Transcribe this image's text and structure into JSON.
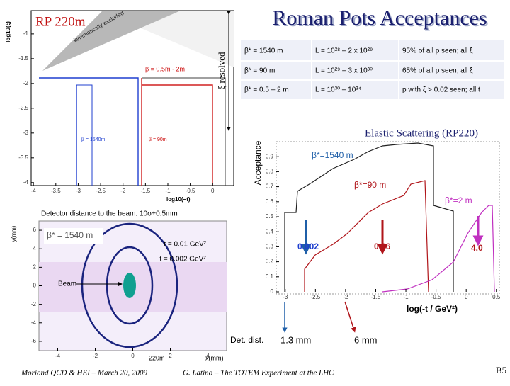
{
  "title": "Roman Pots Acceptances",
  "rp_label": "RP 220m",
  "xi_resolved": "ξ resolved",
  "table": {
    "rows": [
      [
        "β* = 1540 m",
        "L = 10²⁸ – 2 x 10²⁹",
        "95% of all p seen; all ξ"
      ],
      [
        "β* = 90 m",
        "L = 10²⁹ – 3 x 10³⁰",
        "65% of all p seen; all ξ"
      ],
      [
        "β* = 0.5 – 2 m",
        "L = 10³⁰ – 10³⁴",
        "p with ξ > 0.02 seen; all t"
      ]
    ]
  },
  "top_plot": {
    "y_label": "log10(ξ)",
    "x_label": "log10(−t)",
    "excluded": "kinematically excluded",
    "beta_low": "β = 0.5m - 2m",
    "beta_1540": "β = 1540m",
    "beta_90": "β = 90m",
    "xlim": [
      -4.05,
      0.47
    ],
    "ylim": [
      -4.06,
      -0.53
    ],
    "xticks": [
      -4,
      -3.5,
      -3,
      -2.5,
      -2,
      -1.5,
      -1,
      -0.5,
      0
    ],
    "yticks": [
      -1,
      -1.5,
      -2,
      -2.5,
      -3,
      -3.5,
      -4
    ]
  },
  "detector_caption": "Detector distance to the beam: 10σ+0.5mm",
  "beam_plot": {
    "y_label": "y(mm)",
    "x_label": "x(mm)",
    "position": "220m",
    "beta": "β* = 1540 m",
    "t1": "-t = 0.01 GeV²",
    "t2": "-t = 0.002 GeV²",
    "beam": "Beam",
    "xlim": [
      -5,
      5
    ],
    "ylim": [
      -7,
      7
    ],
    "xticks": [
      -4,
      -2,
      0,
      2,
      4
    ],
    "yticks": [
      6,
      4,
      2,
      0,
      -2,
      -4,
      -6
    ]
  },
  "elastic": {
    "title": "Elastic Scattering (RP220)",
    "y_label": "Acceptance",
    "x_label": "log(-t / GeV²)",
    "label_1540": "β*=1540 m",
    "label_90": "β*=90 m",
    "label_2": "β*=2 m",
    "mark_1540": "0.002",
    "mark_90": "0.06",
    "mark_2": "4.0",
    "xlim": [
      -3.15,
      0.55
    ],
    "ylim": [
      0,
      1
    ],
    "xticks": [
      -3,
      -2.5,
      -2,
      -1.5,
      -1,
      -0.5,
      0,
      0.5
    ],
    "yticks": [
      0,
      0.1,
      0.2,
      0.3,
      0.4,
      0.5,
      0.6,
      0.7,
      0.8,
      0.9
    ],
    "det_dist": "Det. dist.",
    "dist_1": "1.3 mm",
    "dist_2": "6 mm"
  },
  "footer": {
    "left": "Moriond QCD & HEI – March 20, 2009",
    "center": "G. Latino – The TOTEM Experiment at the LHC",
    "page": "B5"
  }
}
